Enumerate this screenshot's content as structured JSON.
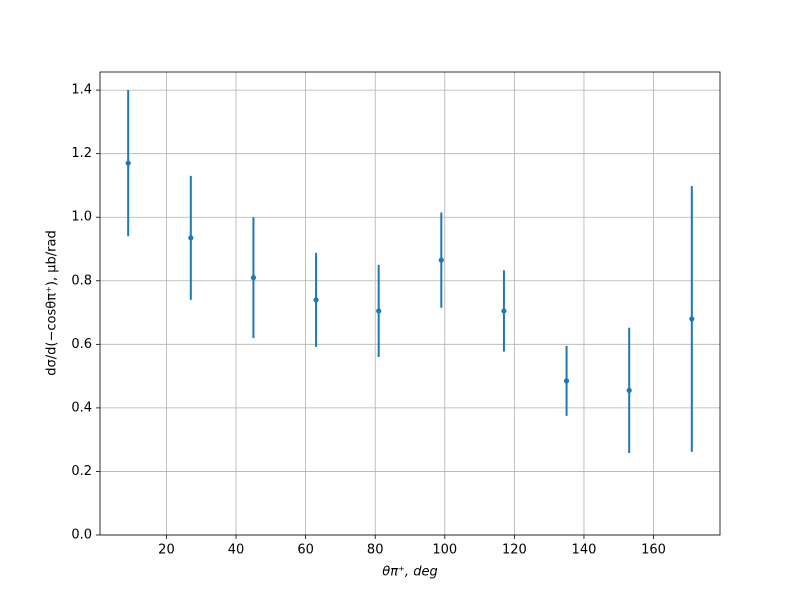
{
  "chart_data": {
    "type": "errorbar",
    "x_label": "θπ⁺, deg",
    "y_label": "dσ/d(−cosθπ⁺), μb/rad",
    "x": [
      9,
      27,
      45,
      63,
      81,
      99,
      117,
      135,
      153,
      171
    ],
    "series": [
      {
        "color": "#1f77b4",
        "values": [
          1.17,
          0.935,
          0.81,
          0.74,
          0.705,
          0.865,
          0.705,
          0.485,
          0.455,
          0.68
        ],
        "errors": [
          0.23,
          0.195,
          0.19,
          0.148,
          0.145,
          0.15,
          0.128,
          0.11,
          0.197,
          0.418
        ]
      }
    ],
    "xlim": [
      0.9,
      179.1
    ],
    "xticks": [
      20,
      40,
      60,
      80,
      100,
      120,
      140,
      160
    ],
    "ylim": [
      0,
      1.457
    ],
    "yticks": [
      {
        "value": 0,
        "label": "0.0"
      },
      0.2,
      0.4,
      0.6,
      0.8,
      {
        "value": 1,
        "label": "1.0"
      },
      1.2,
      1.4
    ],
    "grid": true
  }
}
